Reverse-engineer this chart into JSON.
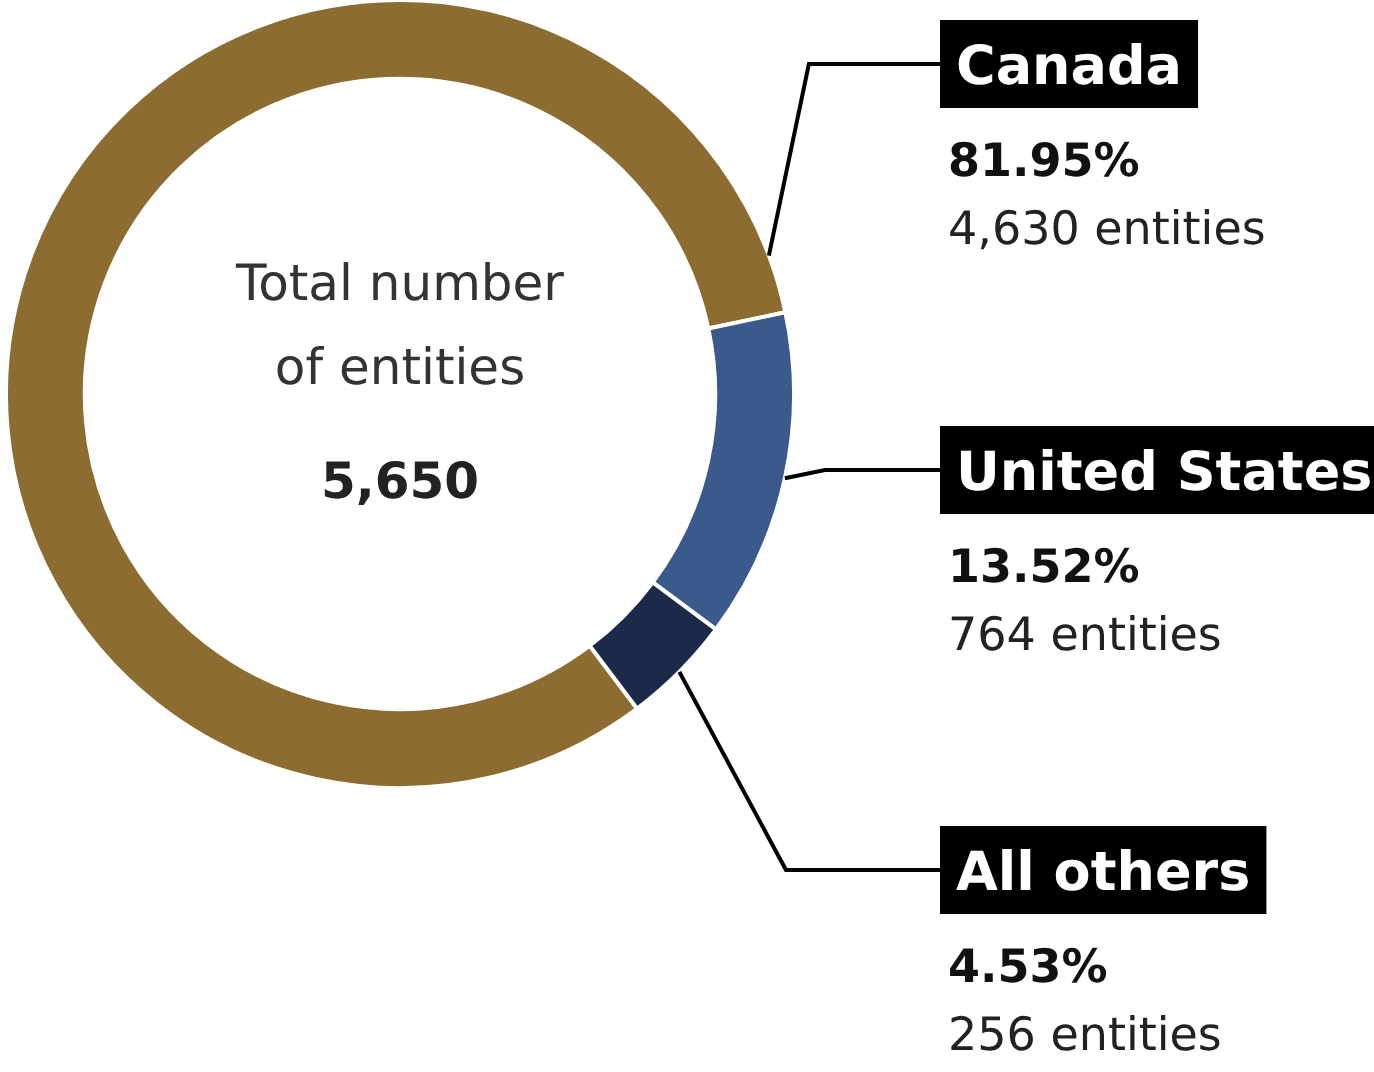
{
  "chart_data": {
    "type": "donut",
    "title": "Total number of entities",
    "subtitle": "5,650",
    "categories": [
      "Canada",
      "United States",
      "All others"
    ],
    "values": [
      81.95,
      13.52,
      4.53
    ],
    "colors": [
      "#8c6c30",
      "#3a5a8c",
      "#1a2a48"
    ],
    "value_labels": [
      "81.95%",
      "13.52%",
      "4.53%"
    ],
    "annotations": [
      "4,630 entities",
      "764 entities",
      "256 entities"
    ]
  }
}
